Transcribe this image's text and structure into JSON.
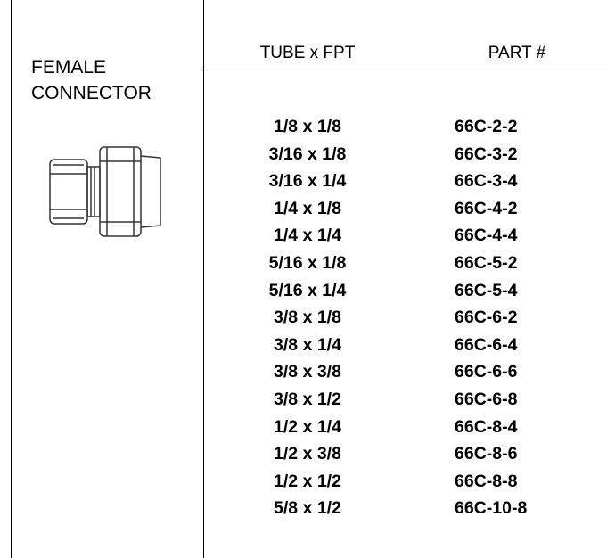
{
  "header": {
    "title_lines": [
      "FEMALE",
      "CONNECTOR"
    ]
  },
  "table": {
    "columns": [
      "TUBE x FPT",
      "PART #"
    ],
    "rows": [
      [
        "1/8 x 1/8",
        "66C-2-2"
      ],
      [
        "3/16 x 1/8",
        "66C-3-2"
      ],
      [
        "3/16 x 1/4",
        "66C-3-4"
      ],
      [
        "1/4 x 1/8",
        "66C-4-2"
      ],
      [
        "1/4 x 1/4",
        "66C-4-4"
      ],
      [
        "5/16 x 1/8",
        "66C-5-2"
      ],
      [
        "5/16 x 1/4",
        "66C-5-4"
      ],
      [
        "3/8 x 1/8",
        "66C-6-2"
      ],
      [
        "3/8 x 1/4",
        "66C-6-4"
      ],
      [
        "3/8 x 3/8",
        "66C-6-6"
      ],
      [
        "3/8 x 1/2",
        "66C-6-8"
      ],
      [
        "1/2 x 1/4",
        "66C-8-4"
      ],
      [
        "1/2 x 3/8",
        "66C-8-6"
      ],
      [
        "1/2 x 1/2",
        "66C-8-8"
      ],
      [
        "5/8 x 1/2",
        "66C-10-8"
      ]
    ]
  }
}
